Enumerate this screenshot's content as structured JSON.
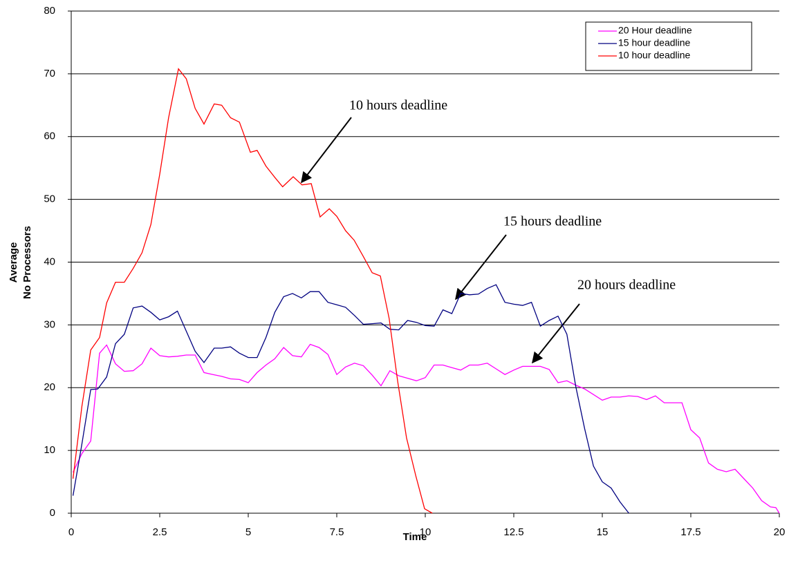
{
  "chart_data": {
    "type": "line",
    "xlabel": "Time",
    "ylabel": [
      "Average",
      "No Processors"
    ],
    "xlim": [
      0,
      20
    ],
    "xticks": [
      0,
      2.5,
      5,
      7.5,
      10,
      12.5,
      15,
      17.5,
      20
    ],
    "ylim": [
      0,
      80
    ],
    "yticks": [
      0,
      10,
      20,
      30,
      40,
      50,
      60,
      70,
      80
    ],
    "grid": true,
    "legend": "upper right",
    "series": [
      {
        "name": "20 Hour deadline",
        "color": "#ff00ff",
        "x": [
          0.05,
          0.3,
          0.55,
          0.8,
          1.0,
          1.25,
          1.5,
          1.75,
          2.0,
          2.25,
          2.5,
          2.75,
          3.0,
          3.25,
          3.5,
          3.75,
          4.0,
          4.25,
          4.5,
          4.75,
          5.0,
          5.25,
          5.5,
          5.75,
          6.0,
          6.25,
          6.5,
          6.75,
          7.0,
          7.25,
          7.5,
          7.75,
          8.0,
          8.25,
          8.5,
          8.75,
          9.0,
          9.25,
          9.5,
          9.75,
          10.0,
          10.25,
          10.5,
          10.75,
          11.0,
          11.25,
          11.5,
          11.75,
          12.0,
          12.25,
          12.5,
          12.75,
          13.0,
          13.25,
          13.5,
          13.75,
          14.0,
          14.25,
          14.5,
          14.75,
          15.0,
          15.25,
          15.5,
          15.75,
          16.0,
          16.25,
          16.5,
          16.75,
          17.0,
          17.25,
          17.5,
          17.75,
          18.0,
          18.25,
          18.5,
          18.75,
          19.0,
          19.25,
          19.5,
          19.75,
          19.9,
          20.0
        ],
        "values": [
          6.5,
          9.5,
          11.5,
          25.5,
          26.8,
          23.8,
          22.6,
          22.7,
          23.8,
          26.3,
          25.1,
          24.9,
          25,
          25.2,
          25.2,
          22.4,
          22.1,
          21.8,
          21.4,
          21.3,
          20.8,
          22.4,
          23.6,
          24.6,
          26.4,
          25.1,
          24.9,
          26.9,
          26.4,
          25.3,
          22.1,
          23.3,
          23.9,
          23.5,
          22,
          20.3,
          22.7,
          21.9,
          21.5,
          21.1,
          21.6,
          23.6,
          23.6,
          23.2,
          22.8,
          23.6,
          23.6,
          23.9,
          23,
          22.1,
          22.8,
          23.4,
          23.4,
          23.4,
          22.9,
          20.8,
          21.1,
          20.4,
          19.8,
          18.9,
          18,
          18.5,
          18.5,
          18.7,
          18.6,
          18.1,
          18.7,
          17.6,
          17.6,
          17.6,
          13.3,
          12,
          8,
          7,
          6.6,
          7,
          5.5,
          4,
          2,
          1,
          0.9,
          0
        ]
      },
      {
        "name": "15 hour deadline",
        "color": "#000080",
        "x": [
          0.05,
          0.3,
          0.55,
          0.75,
          1.0,
          1.25,
          1.5,
          1.75,
          2.0,
          2.25,
          2.5,
          2.75,
          3.0,
          3.25,
          3.5,
          3.75,
          4.04,
          4.25,
          4.5,
          4.75,
          5.0,
          5.25,
          5.5,
          5.75,
          6.0,
          6.25,
          6.5,
          6.75,
          7.0,
          7.25,
          7.5,
          7.75,
          8.0,
          8.25,
          8.5,
          8.75,
          9.0,
          9.25,
          9.5,
          9.75,
          10.0,
          10.25,
          10.5,
          10.75,
          11.0,
          11.25,
          11.5,
          11.75,
          12.0,
          12.25,
          12.5,
          12.75,
          13.0,
          13.25,
          13.5,
          13.75,
          14.0,
          14.25,
          14.5,
          14.75,
          15.0,
          15.25,
          15.5,
          15.75
        ],
        "values": [
          2.8,
          11,
          19.7,
          19.8,
          21.7,
          27,
          28.5,
          32.7,
          33,
          32,
          30.8,
          31.3,
          32.2,
          29,
          25.8,
          24,
          26.3,
          26.3,
          26.5,
          25.5,
          24.8,
          24.8,
          28,
          32,
          34.5,
          35,
          34.3,
          35.3,
          35.3,
          33.6,
          33.2,
          32.8,
          31.5,
          30.1,
          30.2,
          30.3,
          29.3,
          29.2,
          30.7,
          30.4,
          29.9,
          29.8,
          32.4,
          31.8,
          35,
          34.8,
          34.9,
          35.8,
          36.4,
          33.6,
          33.3,
          33.1,
          33.6,
          29.8,
          30.7,
          31.4,
          28.5,
          20.2,
          13.5,
          7.5,
          5,
          4,
          1.8,
          0
        ]
      },
      {
        "name": "10 hour deadline",
        "color": "#ff0000",
        "x": [
          0.05,
          0.3,
          0.55,
          0.8,
          1.0,
          1.25,
          1.5,
          1.75,
          2.0,
          2.25,
          2.5,
          2.75,
          3.03,
          3.25,
          3.5,
          3.75,
          4.04,
          4.25,
          4.5,
          4.75,
          5.06,
          5.25,
          5.5,
          5.75,
          5.97,
          6.27,
          6.52,
          6.78,
          7.03,
          7.29,
          7.5,
          7.75,
          7.99,
          8.24,
          8.5,
          8.73,
          8.98,
          9.22,
          9.47,
          9.73,
          9.98,
          10.2
        ],
        "values": [
          5.5,
          17,
          26,
          28,
          33.5,
          36.8,
          36.8,
          39,
          41.5,
          46,
          54,
          63,
          70.8,
          69.2,
          64.5,
          62,
          65.2,
          65,
          63,
          62.3,
          57.5,
          57.8,
          55.3,
          53.5,
          52,
          53.6,
          52.3,
          52.5,
          47.2,
          48.5,
          47.3,
          45,
          43.5,
          41,
          38.3,
          37.8,
          31,
          21,
          12,
          6,
          0.7,
          0
        ]
      }
    ],
    "annotations": [
      "10 hours deadline",
      "15 hours deadline",
      "20 hours deadline"
    ]
  }
}
